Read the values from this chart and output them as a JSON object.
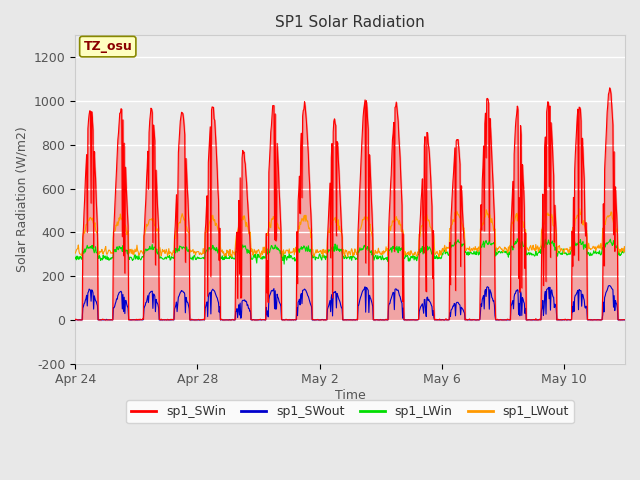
{
  "title": "SP1 Solar Radiation",
  "xlabel": "Time",
  "ylabel": "Solar Radiation (W/m2)",
  "ylim": [
    -200,
    1300
  ],
  "yticks": [
    -200,
    0,
    200,
    400,
    600,
    800,
    1000,
    1200
  ],
  "fig_bg_color": "#e8e8e8",
  "plot_bg_color": "#ffffff",
  "plot_area_bg": "#ebebeb",
  "tz_label": "TZ_osu",
  "series_colors": {
    "sp1_SWin": "#ff0000",
    "sp1_SWout": "#0000cc",
    "sp1_LWin": "#00dd00",
    "sp1_LWout": "#ff9900"
  },
  "legend_entries": [
    "sp1_SWin",
    "sp1_SWout",
    "sp1_LWin",
    "sp1_LWout"
  ],
  "xtick_labels": [
    "Apr 24",
    "Apr 28",
    "May 2",
    "May 6",
    "May 10"
  ],
  "xtick_days": [
    0,
    4,
    8,
    12,
    16
  ],
  "n_days": 18.0,
  "day_peaks_SWin": [
    970,
    960,
    960,
    950,
    970,
    760,
    980,
    980,
    910,
    1000,
    980,
    860,
    830,
    1020,
    980,
    1000,
    980,
    1050
  ],
  "day_peaks_SWout": [
    140,
    130,
    130,
    130,
    140,
    90,
    140,
    140,
    125,
    150,
    140,
    100,
    80,
    150,
    140,
    150,
    140,
    155
  ]
}
